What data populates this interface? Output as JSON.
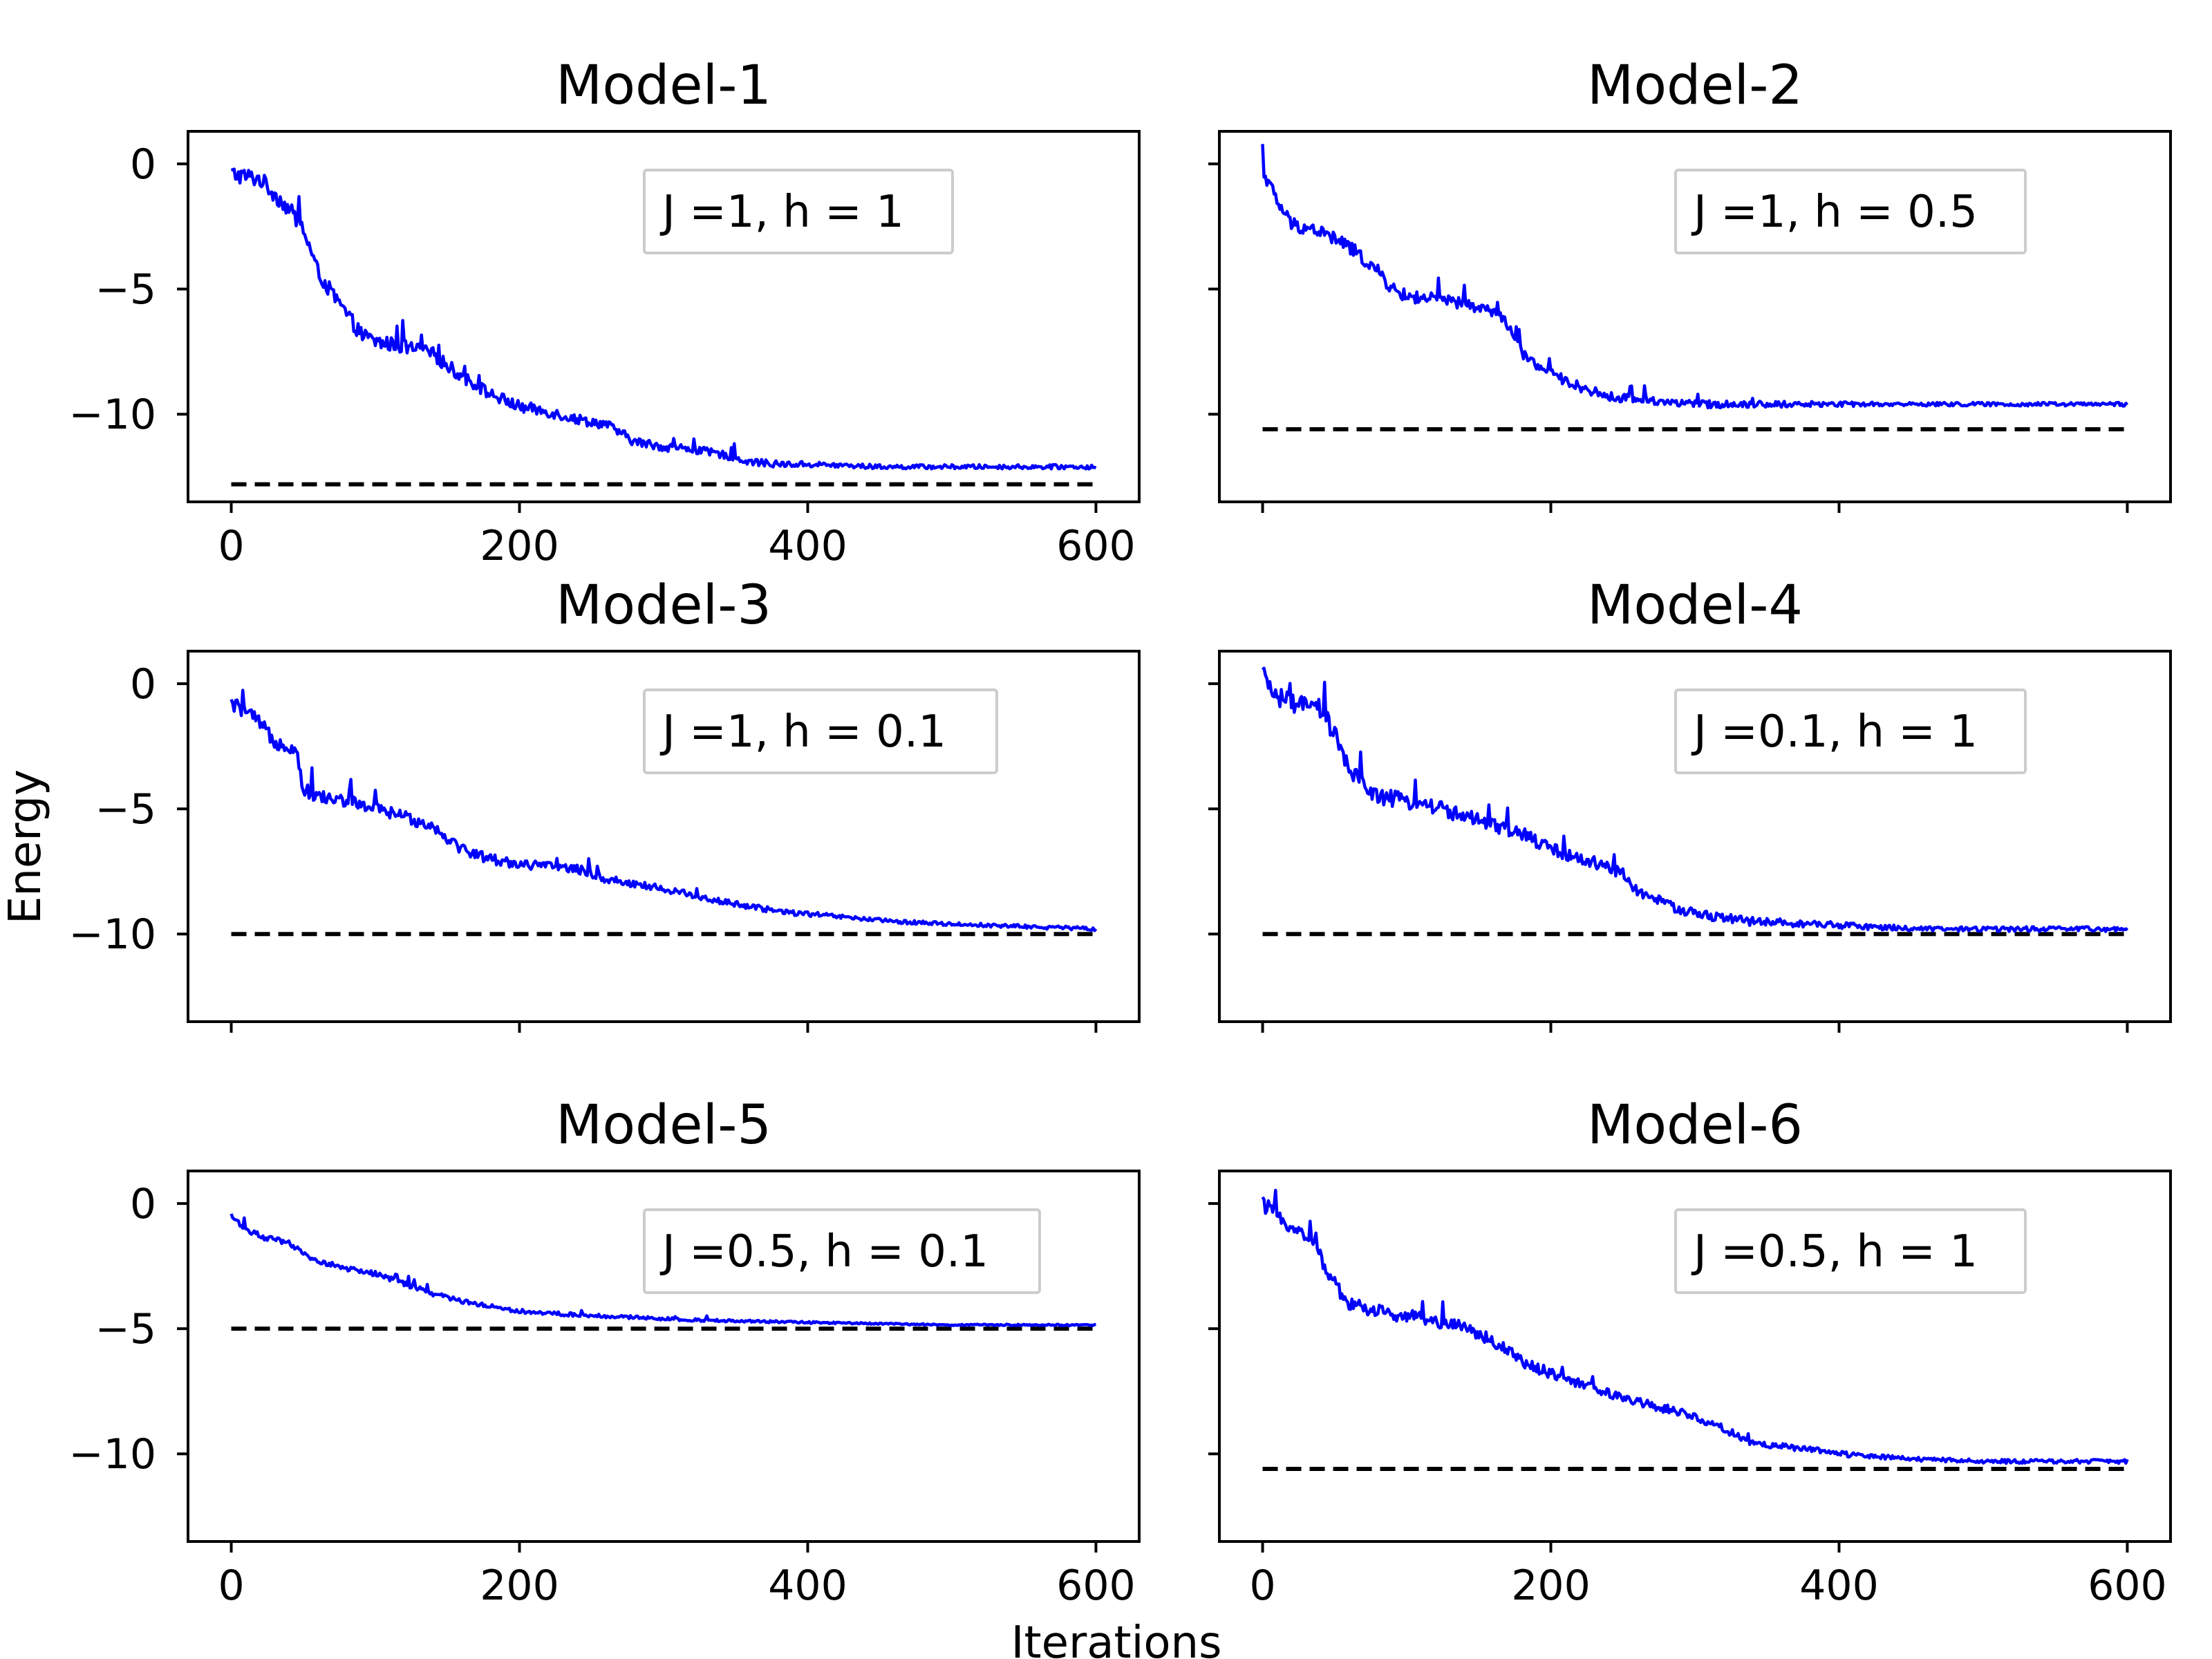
{
  "figure": {
    "xlabel": "Iterations",
    "ylabel": "Energy"
  },
  "colors": {
    "series": "#0000ff",
    "reference": "#000000",
    "legend_border": "#cccccc"
  },
  "chart_data": [
    {
      "type": "line",
      "title": "Model-1",
      "legend": "J =1, h = 1",
      "xlim": [
        -30,
        630
      ],
      "ylim": [
        -13.5,
        1.3
      ],
      "xticks": [
        0,
        200,
        400,
        600
      ],
      "yticks": [
        0,
        -5,
        -10
      ],
      "xtick_labels": [
        "0",
        "200",
        "400",
        "600"
      ],
      "ytick_labels": [
        "0",
        "−5",
        "−10"
      ],
      "reference_value": -12.8,
      "series": [
        {
          "x": [
            0,
            20,
            40,
            50,
            60,
            70,
            80,
            90,
            100,
            120,
            140,
            160,
            180,
            200,
            220,
            240,
            260,
            280,
            300,
            320,
            340,
            360,
            380,
            400,
            450,
            500,
            550,
            600
          ],
          "y": [
            -0.4,
            -0.6,
            -1.8,
            -2.6,
            -4.3,
            -5.2,
            -6.0,
            -6.8,
            -7.1,
            -7.3,
            -7.6,
            -8.5,
            -9.2,
            -9.7,
            -9.9,
            -10.2,
            -10.4,
            -11.1,
            -11.3,
            -11.4,
            -11.6,
            -11.9,
            -12.0,
            -12.0,
            -12.1,
            -12.1,
            -12.1,
            -12.1
          ],
          "noise": 0.35
        }
      ]
    },
    {
      "type": "line",
      "title": "Model-2",
      "legend": "J =1, h = 0.5",
      "xlim": [
        -30,
        630
      ],
      "ylim": [
        -13.5,
        1.3
      ],
      "xticks": [
        0,
        200,
        400,
        600
      ],
      "yticks": [
        0,
        -5,
        -10
      ],
      "xtick_labels": [
        "",
        "",
        "",
        ""
      ],
      "ytick_labels": [
        "",
        "",
        ""
      ],
      "reference_value": -10.6,
      "series": [
        {
          "x": [
            0,
            10,
            20,
            40,
            60,
            80,
            90,
            100,
            120,
            140,
            160,
            170,
            180,
            200,
            220,
            240,
            260,
            280,
            300,
            320,
            340,
            400,
            500,
            600
          ],
          "y": [
            -0.2,
            -1.5,
            -2.4,
            -2.7,
            -3.3,
            -4.3,
            -5.0,
            -5.3,
            -5.4,
            -5.6,
            -5.9,
            -6.4,
            -7.6,
            -8.4,
            -8.9,
            -9.3,
            -9.4,
            -9.5,
            -9.6,
            -9.6,
            -9.6,
            -9.6,
            -9.6,
            -9.6
          ],
          "noise": 0.3
        }
      ]
    },
    {
      "type": "line",
      "title": "Model-3",
      "legend": "J =1, h = 0.1",
      "xlim": [
        -30,
        630
      ],
      "ylim": [
        -13.5,
        1.3
      ],
      "xticks": [
        0,
        200,
        400,
        600
      ],
      "yticks": [
        0,
        -5,
        -10
      ],
      "xtick_labels": [
        "",
        "",
        "",
        ""
      ],
      "ytick_labels": [
        "0",
        "−5",
        "−10"
      ],
      "reference_value": -10.0,
      "series": [
        {
          "x": [
            0,
            10,
            20,
            30,
            45,
            50,
            60,
            80,
            100,
            120,
            140,
            160,
            180,
            200,
            240,
            260,
            280,
            300,
            340,
            380,
            420,
            460,
            500,
            550,
            600
          ],
          "y": [
            -0.8,
            -1.1,
            -1.6,
            -2.3,
            -2.6,
            -4.2,
            -4.5,
            -4.7,
            -5.0,
            -5.3,
            -5.7,
            -6.6,
            -7.0,
            -7.2,
            -7.4,
            -7.8,
            -8.0,
            -8.2,
            -8.7,
            -9.1,
            -9.3,
            -9.5,
            -9.6,
            -9.7,
            -9.8
          ],
          "noise": 0.3
        }
      ]
    },
    {
      "type": "line",
      "title": "Model-4",
      "legend": "J =0.1, h = 1",
      "xlim": [
        -30,
        630
      ],
      "ylim": [
        -13.5,
        1.3
      ],
      "xticks": [
        0,
        200,
        400,
        600
      ],
      "yticks": [
        0,
        -5,
        -10
      ],
      "xtick_labels": [
        "",
        "",
        "",
        ""
      ],
      "ytick_labels": [
        "",
        "",
        ""
      ],
      "reference_value": -10.0,
      "series": [
        {
          "x": [
            0,
            10,
            20,
            40,
            50,
            60,
            80,
            100,
            120,
            140,
            160,
            180,
            200,
            220,
            240,
            250,
            260,
            280,
            300,
            340,
            380,
            420,
            460,
            500,
            550,
            600
          ],
          "y": [
            0.3,
            -0.5,
            -0.8,
            -1.0,
            -2.0,
            -3.5,
            -4.5,
            -4.7,
            -4.9,
            -5.3,
            -5.7,
            -6.0,
            -6.6,
            -7.0,
            -7.3,
            -7.6,
            -8.3,
            -8.8,
            -9.2,
            -9.5,
            -9.6,
            -9.7,
            -9.8,
            -9.8,
            -9.8,
            -9.8
          ],
          "noise": 0.4
        }
      ]
    },
    {
      "type": "line",
      "title": "Model-5",
      "legend": "J =0.5, h = 0.1",
      "xlim": [
        -30,
        630
      ],
      "ylim": [
        -13.5,
        1.3
      ],
      "xticks": [
        0,
        200,
        400,
        600
      ],
      "yticks": [
        0,
        -5,
        -10
      ],
      "xtick_labels": [
        "0",
        "200",
        "400",
        "600"
      ],
      "ytick_labels": [
        "0",
        "−5",
        "−10"
      ],
      "reference_value": -5.0,
      "series": [
        {
          "x": [
            0,
            10,
            20,
            40,
            50,
            60,
            80,
            100,
            120,
            140,
            160,
            180,
            200,
            240,
            280,
            320,
            360,
            400,
            450,
            500,
            550,
            600
          ],
          "y": [
            -0.5,
            -1.0,
            -1.3,
            -1.6,
            -2.0,
            -2.3,
            -2.6,
            -2.8,
            -3.2,
            -3.6,
            -3.9,
            -4.1,
            -4.3,
            -4.45,
            -4.55,
            -4.65,
            -4.7,
            -4.75,
            -4.8,
            -4.85,
            -4.85,
            -4.85
          ],
          "noise": 0.12
        }
      ]
    },
    {
      "type": "line",
      "title": "Model-6",
      "legend": "J =0.5, h = 1",
      "xlim": [
        -30,
        630
      ],
      "ylim": [
        -13.5,
        1.3
      ],
      "xticks": [
        0,
        200,
        400,
        600
      ],
      "yticks": [
        0,
        -5,
        -10
      ],
      "xtick_labels": [
        "0",
        "200",
        "400",
        "600"
      ],
      "ytick_labels": [
        "",
        "",
        ""
      ],
      "reference_value": -10.6,
      "series": [
        {
          "x": [
            0,
            10,
            20,
            30,
            40,
            50,
            60,
            80,
            100,
            120,
            140,
            160,
            180,
            200,
            220,
            240,
            260,
            280,
            300,
            320,
            340,
            360,
            380,
            400,
            450,
            500,
            550,
            600
          ],
          "y": [
            0.0,
            -0.5,
            -0.9,
            -1.3,
            -2.1,
            -3.2,
            -4.0,
            -4.3,
            -4.5,
            -4.7,
            -4.9,
            -5.5,
            -6.3,
            -6.8,
            -7.2,
            -7.6,
            -7.9,
            -8.2,
            -8.5,
            -9.0,
            -9.6,
            -9.7,
            -9.8,
            -10.0,
            -10.2,
            -10.3,
            -10.3,
            -10.3
          ],
          "noise": 0.32
        }
      ]
    }
  ]
}
